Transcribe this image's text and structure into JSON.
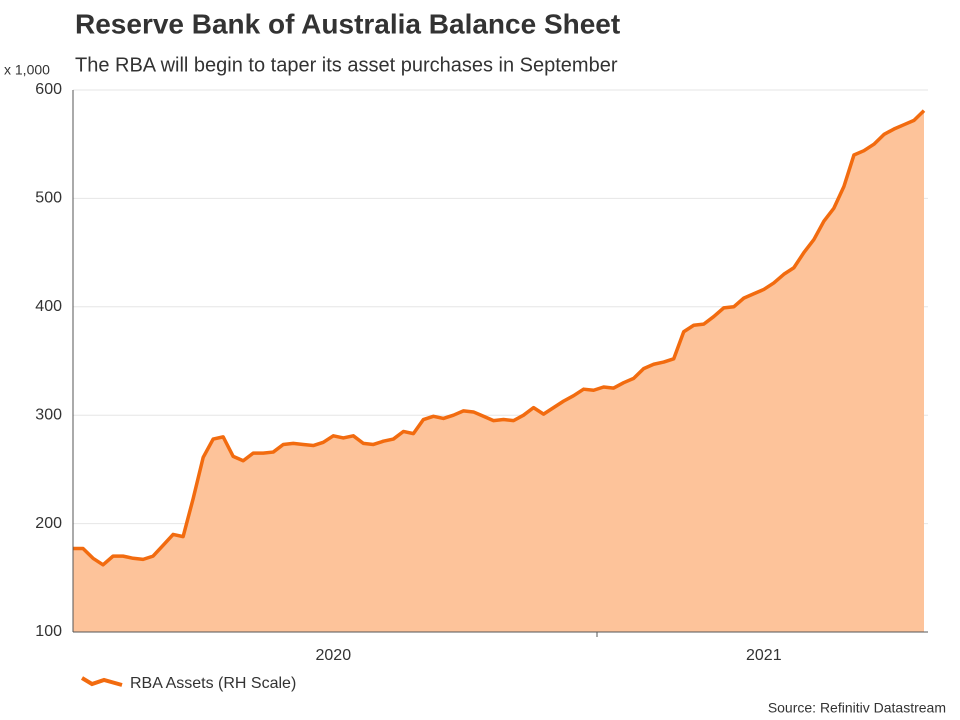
{
  "chart_data": {
    "type": "line",
    "title": "Reserve Bank of Australia Balance Sheet",
    "subtitle": "The RBA will begin to taper its asset purchases in September",
    "y_unit_label": "x 1,000",
    "source": "Source: Refinitiv Datastream",
    "categories": [
      null,
      null,
      null,
      null,
      null,
      null,
      null,
      null,
      null,
      null,
      null,
      null,
      null,
      null,
      null,
      null,
      null,
      null,
      null,
      null,
      null,
      null,
      null,
      null,
      null,
      null,
      "2020",
      null,
      null,
      null,
      null,
      null,
      null,
      null,
      null,
      null,
      null,
      null,
      null,
      null,
      null,
      null,
      null,
      null,
      null,
      null,
      null,
      null,
      null,
      null,
      null,
      null,
      null,
      null,
      null,
      null,
      null,
      null,
      null,
      null,
      null,
      null,
      null,
      null,
      null,
      null,
      null,
      null,
      null,
      "2021",
      null,
      null,
      null,
      null,
      null,
      null,
      null,
      null,
      null,
      null,
      null,
      null,
      null,
      null,
      null,
      null
    ],
    "series": [
      {
        "name": "RBA Assets (RH Scale)",
        "color": "#f26b0f",
        "fill": "#fdc39a",
        "values": [
          177,
          177,
          168,
          162,
          170,
          170,
          168,
          167,
          170,
          180,
          190,
          188,
          223,
          261,
          278,
          280,
          262,
          258,
          265,
          265,
          266,
          273,
          274,
          273,
          272,
          275,
          281,
          279,
          281,
          274,
          273,
          276,
          278,
          285,
          283,
          296,
          299,
          297,
          300,
          304,
          303,
          299,
          295,
          296,
          295,
          300,
          307,
          301,
          307,
          313,
          318,
          324,
          323,
          326,
          325,
          330,
          334,
          343,
          347,
          349,
          352,
          377,
          383,
          384,
          391,
          399,
          400,
          408,
          412,
          416,
          422,
          430,
          436,
          450,
          462,
          479,
          491,
          511,
          540,
          544,
          550,
          559,
          564,
          568,
          572,
          581
        ]
      }
    ],
    "ylim": [
      100,
      600
    ],
    "yticks": [
      100,
      200,
      300,
      400,
      500,
      600
    ],
    "grid": true
  }
}
